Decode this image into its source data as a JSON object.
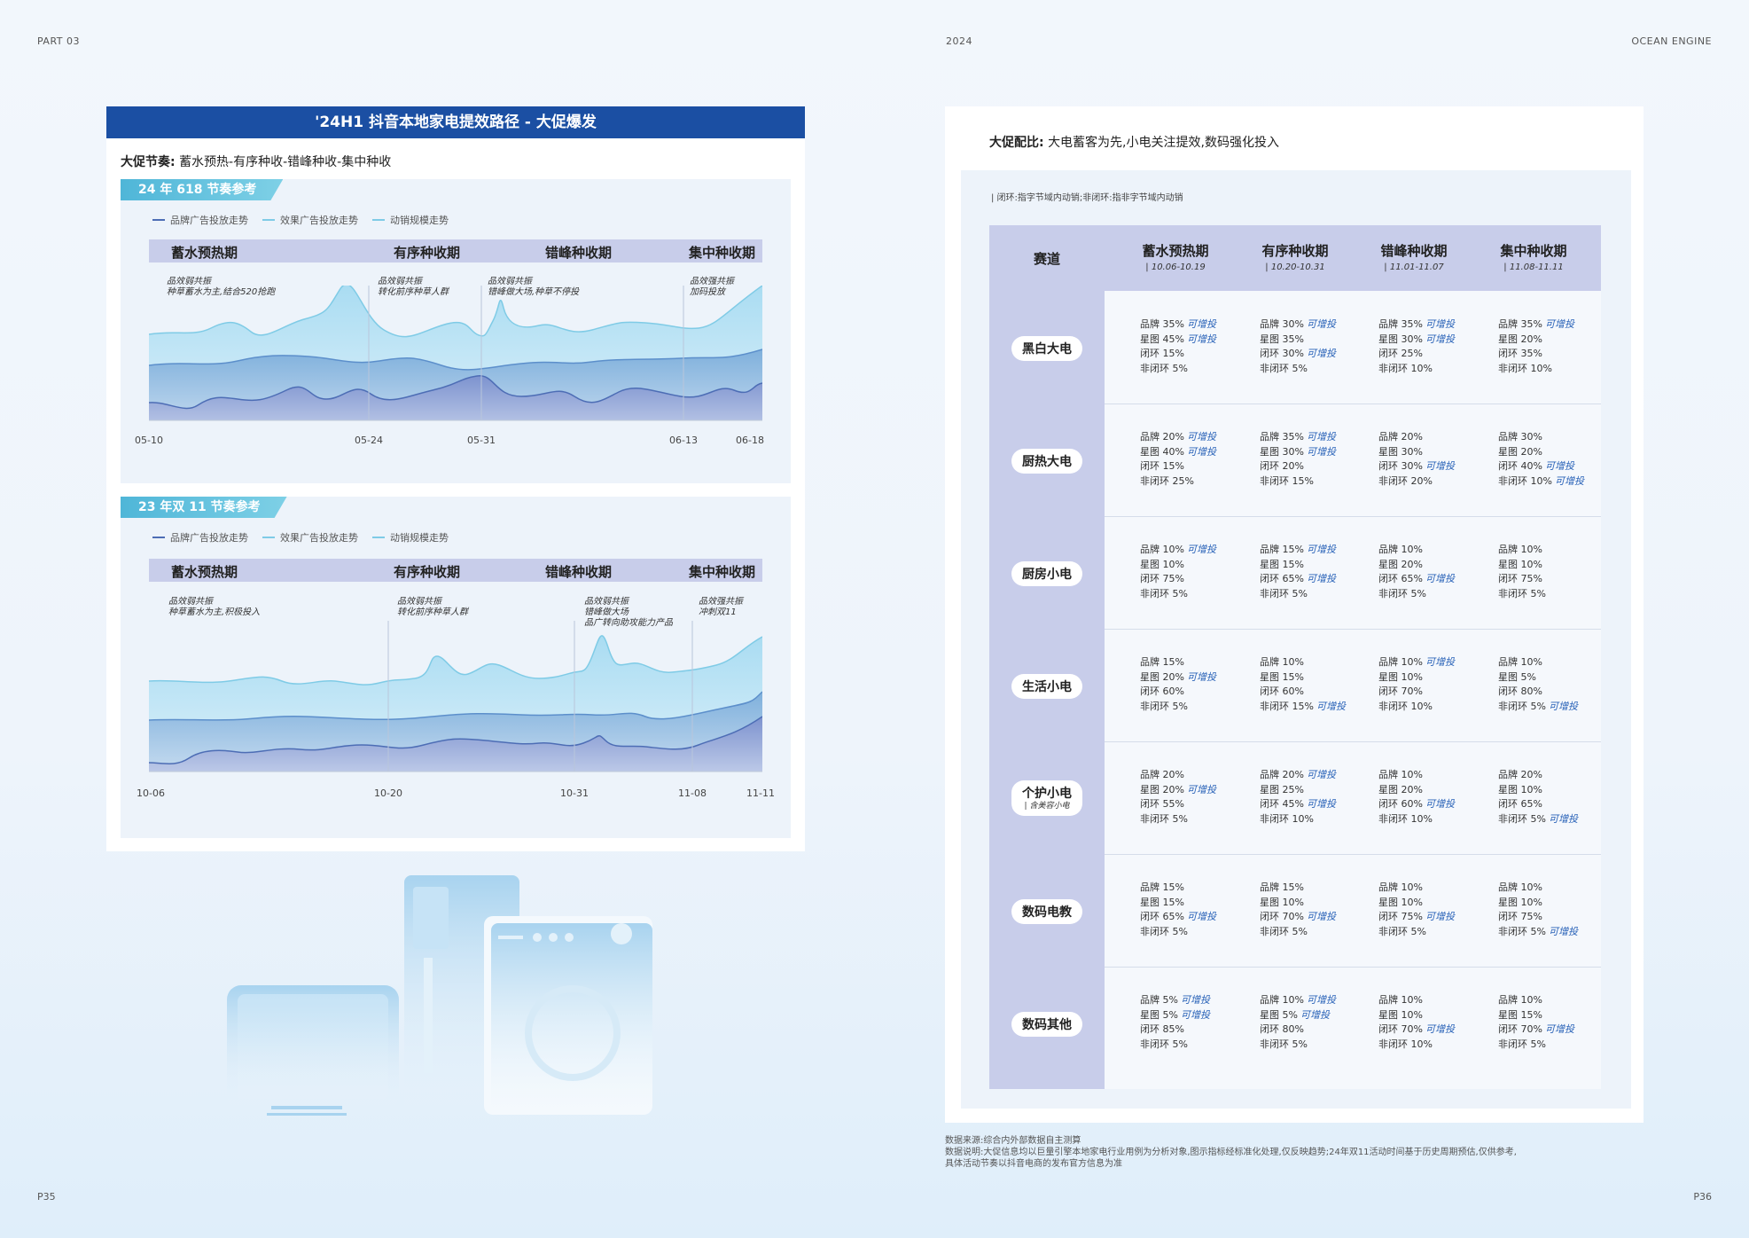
{
  "header": {
    "left": "PART 03",
    "center": "2024",
    "right": "OCEAN ENGINE"
  },
  "footer": {
    "left_page": "P35",
    "right_page": "P36"
  },
  "left": {
    "title": "'24H1 抖音本地家电提效路径 - 大促爆发",
    "rhythm_label": "大促节奏:",
    "rhythm_value": "蓄水预热-有序种收-错峰种收-集中种收",
    "legend": [
      "品牌广告投放走势",
      "效果广告投放走势",
      "动销规模走势"
    ],
    "legend_colors": [
      "#4d6db5",
      "#7fcbe6",
      "#7fcbe6"
    ],
    "phases": [
      "蓄水预热期",
      "有序种收期",
      "错峰种收期",
      "集中种收期"
    ],
    "charts": [
      {
        "tag": "24 年 618 节奏参考",
        "notes": [
          "品效弱共振\n种草蓄水为主,结合520抢跑",
          "品效弱共振\n转化前序种草人群",
          "品效弱共振\n错峰做大场,种草不停投",
          "品效强共振\n加码投放"
        ],
        "ticks": [
          "05-10",
          "05-24",
          "05-31",
          "06-13",
          "06-18"
        ]
      },
      {
        "tag": "23 年双 11 节奏参考",
        "notes": [
          "品效弱共振\n种草蓄水为主,积极投入",
          "品效弱共振\n转化前序种草人群",
          "品效弱共振\n错峰做大场\n品广转向助攻能力产品",
          "品效强共振\n冲刺双11"
        ],
        "ticks": [
          "10-06",
          "10-20",
          "10-31",
          "11-08",
          "11-11"
        ]
      }
    ]
  },
  "right": {
    "ratio_label": "大促配比:",
    "ratio_value": "大电蓄客为先,小电关注提效,数码强化投入",
    "note": "| 闭环:指字节域内动销;非闭环:指非字节域内动销",
    "track_header": "赛道",
    "add_label": "可增投",
    "columns": [
      {
        "name": "蓄水预热期",
        "date": "| 10.06-10.19"
      },
      {
        "name": "有序种收期",
        "date": "| 10.20-10.31"
      },
      {
        "name": "错峰种收期",
        "date": "| 11.01-11.07"
      },
      {
        "name": "集中种收期",
        "date": "| 11.08-11.11"
      }
    ],
    "rows": [
      {
        "label": "黑白大电",
        "sub": "",
        "cells": [
          [
            [
              "品牌 35%",
              true
            ],
            [
              "星图 45%",
              true
            ],
            [
              "闭环 15%",
              false
            ],
            [
              "非闭环 5%",
              false
            ]
          ],
          [
            [
              "品牌 30%",
              true
            ],
            [
              "星图 35%",
              false
            ],
            [
              "闭环 30%",
              true
            ],
            [
              "非闭环 5%",
              false
            ]
          ],
          [
            [
              "品牌 35%",
              true
            ],
            [
              "星图 30%",
              true
            ],
            [
              "闭环 25%",
              false
            ],
            [
              "非闭环 10%",
              false
            ]
          ],
          [
            [
              "品牌 35%",
              true
            ],
            [
              "星图 20%",
              false
            ],
            [
              "闭环 35%",
              false
            ],
            [
              "非闭环 10%",
              false
            ]
          ]
        ]
      },
      {
        "label": "厨热大电",
        "sub": "",
        "cells": [
          [
            [
              "品牌 20%",
              true
            ],
            [
              "星图 40%",
              true
            ],
            [
              "闭环 15%",
              false
            ],
            [
              "非闭环 25%",
              false
            ]
          ],
          [
            [
              "品牌 35%",
              true
            ],
            [
              "星图 30%",
              true
            ],
            [
              "闭环 20%",
              false
            ],
            [
              "非闭环 15%",
              false
            ]
          ],
          [
            [
              "品牌 20%",
              false
            ],
            [
              "星图 30%",
              false
            ],
            [
              "闭环 30%",
              true
            ],
            [
              "非闭环 20%",
              false
            ]
          ],
          [
            [
              "品牌 30%",
              false
            ],
            [
              "星图 20%",
              false
            ],
            [
              "闭环 40%",
              true
            ],
            [
              "非闭环 10%",
              true
            ]
          ]
        ]
      },
      {
        "label": "厨房小电",
        "sub": "",
        "cells": [
          [
            [
              "品牌 10%",
              true
            ],
            [
              "星图 10%",
              false
            ],
            [
              "闭环 75%",
              false
            ],
            [
              "非闭环 5%",
              false
            ]
          ],
          [
            [
              "品牌 15%",
              true
            ],
            [
              "星图 15%",
              false
            ],
            [
              "闭环 65%",
              true
            ],
            [
              "非闭环 5%",
              false
            ]
          ],
          [
            [
              "品牌 10%",
              false
            ],
            [
              "星图 20%",
              false
            ],
            [
              "闭环 65%",
              true
            ],
            [
              "非闭环 5%",
              false
            ]
          ],
          [
            [
              "品牌 10%",
              false
            ],
            [
              "星图 10%",
              false
            ],
            [
              "闭环 75%",
              false
            ],
            [
              "非闭环 5%",
              false
            ]
          ]
        ]
      },
      {
        "label": "生活小电",
        "sub": "",
        "cells": [
          [
            [
              "品牌 15%",
              false
            ],
            [
              "星图 20%",
              true
            ],
            [
              "闭环 60%",
              false
            ],
            [
              "非闭环 5%",
              false
            ]
          ],
          [
            [
              "品牌 10%",
              false
            ],
            [
              "星图 15%",
              false
            ],
            [
              "闭环 60%",
              false
            ],
            [
              "非闭环 15%",
              true
            ]
          ],
          [
            [
              "品牌 10%",
              true
            ],
            [
              "星图 10%",
              false
            ],
            [
              "闭环 70%",
              false
            ],
            [
              "非闭环 10%",
              false
            ]
          ],
          [
            [
              "品牌 10%",
              false
            ],
            [
              "星图 5%",
              false
            ],
            [
              "闭环 80%",
              false
            ],
            [
              "非闭环 5%",
              true
            ]
          ]
        ]
      },
      {
        "label": "个护小电",
        "sub": "| 含美容小电",
        "cells": [
          [
            [
              "品牌 20%",
              false
            ],
            [
              "星图 20%",
              true
            ],
            [
              "闭环 55%",
              false
            ],
            [
              "非闭环 5%",
              false
            ]
          ],
          [
            [
              "品牌 20%",
              true
            ],
            [
              "星图 25%",
              false
            ],
            [
              "闭环 45%",
              true
            ],
            [
              "非闭环 10%",
              false
            ]
          ],
          [
            [
              "品牌 10%",
              false
            ],
            [
              "星图 20%",
              false
            ],
            [
              "闭环 60%",
              true
            ],
            [
              "非闭环 10%",
              false
            ]
          ],
          [
            [
              "品牌 20%",
              false
            ],
            [
              "星图 10%",
              false
            ],
            [
              "闭环 65%",
              false
            ],
            [
              "非闭环 5%",
              true
            ]
          ]
        ]
      },
      {
        "label": "数码电教",
        "sub": "",
        "cells": [
          [
            [
              "品牌 15%",
              false
            ],
            [
              "星图 15%",
              false
            ],
            [
              "闭环 65%",
              true
            ],
            [
              "非闭环 5%",
              false
            ]
          ],
          [
            [
              "品牌 15%",
              false
            ],
            [
              "星图 10%",
              false
            ],
            [
              "闭环 70%",
              true
            ],
            [
              "非闭环 5%",
              false
            ]
          ],
          [
            [
              "品牌 10%",
              false
            ],
            [
              "星图 10%",
              false
            ],
            [
              "闭环 75%",
              true
            ],
            [
              "非闭环 5%",
              false
            ]
          ],
          [
            [
              "品牌 10%",
              false
            ],
            [
              "星图 10%",
              false
            ],
            [
              "闭环 75%",
              false
            ],
            [
              "非闭环 5%",
              true
            ]
          ]
        ]
      },
      {
        "label": "数码其他",
        "sub": "",
        "cells": [
          [
            [
              "品牌 5%",
              true
            ],
            [
              "星图 5%",
              true
            ],
            [
              "闭环 85%",
              false
            ],
            [
              "非闭环 5%",
              false
            ]
          ],
          [
            [
              "品牌 10%",
              true
            ],
            [
              "星图 5%",
              true
            ],
            [
              "闭环 80%",
              false
            ],
            [
              "非闭环 5%",
              false
            ]
          ],
          [
            [
              "品牌 10%",
              false
            ],
            [
              "星图 10%",
              false
            ],
            [
              "闭环 70%",
              true
            ],
            [
              "非闭环 10%",
              false
            ]
          ],
          [
            [
              "品牌 10%",
              false
            ],
            [
              "星图 15%",
              false
            ],
            [
              "闭环 70%",
              true
            ],
            [
              "非闭环 5%",
              false
            ]
          ]
        ]
      }
    ],
    "source": "数据来源:综合内外部数据自主测算",
    "explain1": "数据说明:大促信息均以巨量引擎本地家电行业用例为分析对象,图示指标经标准化处理,仅反映趋势;24年双11活动时间基于历史周期预估,仅供参考,",
    "explain2": "具体活动节奏以抖音电商的发布官方信息为准"
  }
}
